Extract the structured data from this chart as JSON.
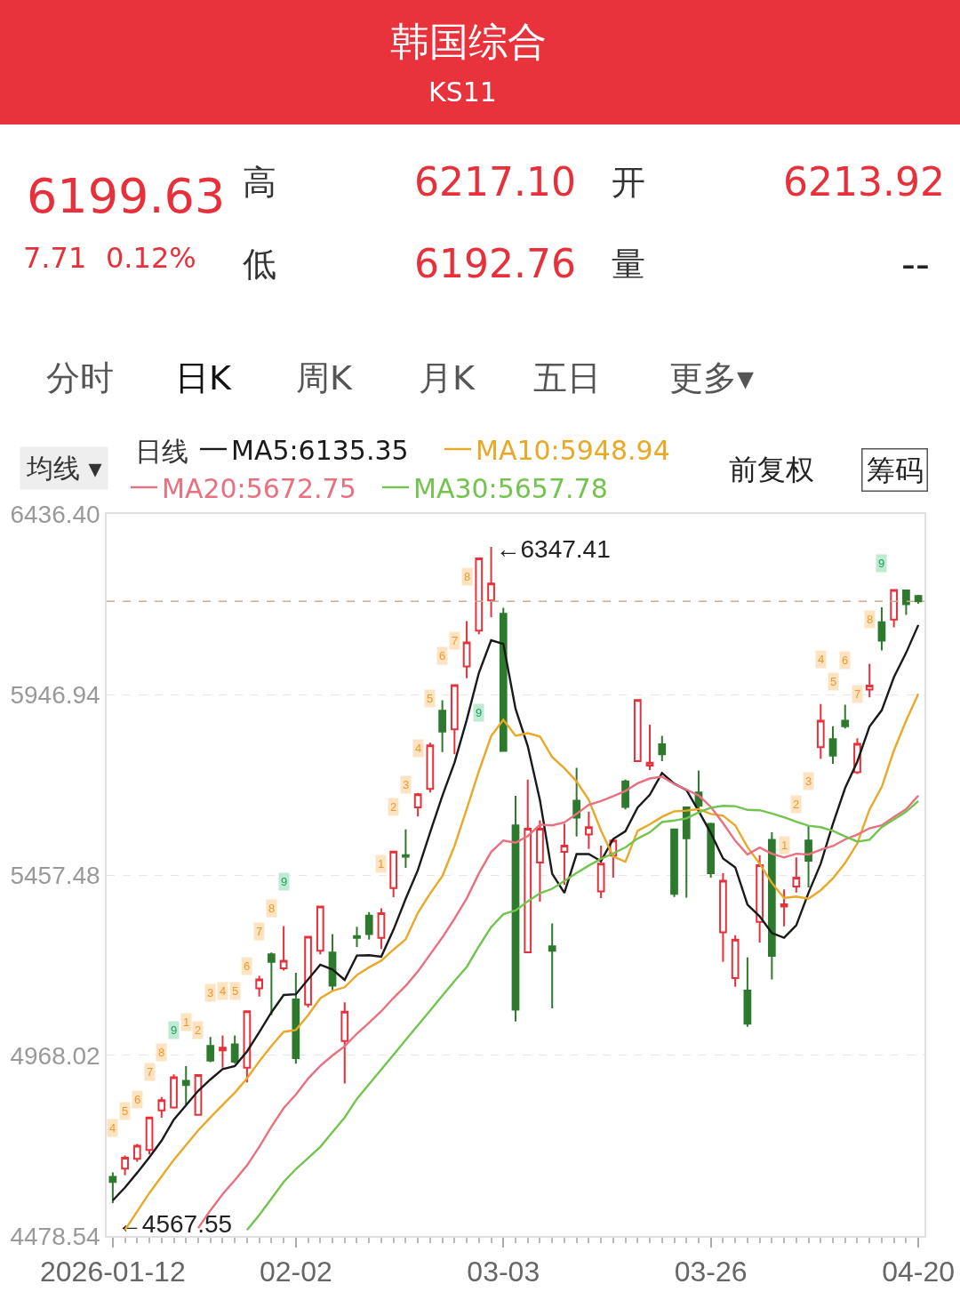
{
  "chart_data": {
    "type": "candlestick",
    "title": "韩国综合",
    "subtitle": "KS11",
    "legend_title": "日线",
    "legend": "top left",
    "grid": "y",
    "categories": [
      "2026-01-12",
      null,
      null,
      null,
      null,
      null,
      null,
      null,
      null,
      null,
      null,
      null,
      null,
      null,
      null,
      "02-02",
      null,
      null,
      null,
      null,
      null,
      null,
      null,
      null,
      null,
      null,
      null,
      null,
      null,
      null,
      null,
      null,
      "03-03",
      null,
      null,
      null,
      null,
      null,
      null,
      null,
      null,
      null,
      null,
      null,
      null,
      null,
      null,
      null,
      null,
      "03-26",
      null,
      null,
      null,
      null,
      null,
      null,
      null,
      null,
      null,
      null,
      null,
      null,
      null,
      null,
      null,
      null,
      "04-20"
    ],
    "ohlc": [
      [
        4639,
        4651,
        4567.55,
        4625
      ],
      [
        4661,
        4697,
        4643,
        4691
      ],
      [
        4688,
        4728,
        4680,
        4723
      ],
      [
        4712,
        4802,
        4700,
        4800
      ],
      [
        4819,
        4855,
        4799,
        4847
      ],
      [
        4827,
        4917,
        4824,
        4909
      ],
      [
        4899,
        4939,
        4835,
        4888
      ],
      [
        4807,
        4917,
        4805,
        4915
      ],
      [
        4994,
        5018,
        4950,
        4954
      ],
      [
        4982,
        5022,
        4935,
        4989
      ],
      [
        4998,
        5022,
        4946,
        4951
      ],
      [
        4935,
        5090,
        4895,
        5088
      ],
      [
        5150,
        5184,
        5128,
        5174
      ],
      [
        5242,
        5247,
        5078,
        5222
      ],
      [
        5204,
        5319,
        5198,
        5225
      ],
      [
        5120,
        5192,
        4946,
        4961
      ],
      [
        5106,
        5292,
        5098,
        5290
      ],
      [
        5252,
        5372,
        5242,
        5372
      ],
      [
        5247,
        5297,
        5142,
        5157
      ],
      [
        5007,
        5112,
        4892,
        5087
      ],
      [
        5292,
        5317,
        5262,
        5287
      ],
      [
        5347,
        5357,
        5282,
        5297
      ],
      [
        5287,
        5367,
        5257,
        5354
      ],
      [
        5422,
        5521,
        5397,
        5521
      ],
      [
        5511,
        5581,
        5477,
        5507
      ],
      [
        5641,
        5680,
        5616,
        5676
      ],
      [
        5691,
        5816,
        5681,
        5809
      ],
      [
        5903,
        5931,
        5791,
        5846
      ],
      [
        5852,
        5972,
        5785,
        5972
      ],
      [
        6023,
        6146,
        5991,
        6088
      ],
      [
        6120,
        6318,
        6110,
        6316
      ],
      [
        6202,
        6347.41,
        6156,
        6248
      ],
      [
        6166,
        6182,
        5794,
        5794
      ],
      [
        5592,
        5672,
        5060,
        5092
      ],
      [
        5248,
        5716,
        5248,
        5583
      ],
      [
        5491,
        5606,
        5385,
        5583
      ],
      [
        5264,
        5326,
        5096,
        5252
      ],
      [
        5520,
        5596,
        5431,
        5537
      ],
      [
        5659,
        5748,
        5562,
        5613
      ],
      [
        5567,
        5629,
        5528,
        5587
      ],
      [
        5413,
        5537,
        5395,
        5488
      ],
      [
        5510,
        5553,
        5450,
        5551
      ],
      [
        5711,
        5716,
        5635,
        5642
      ],
      [
        5766,
        5934,
        5764,
        5932
      ],
      [
        5754,
        5865,
        5742,
        5762
      ],
      [
        5812,
        5835,
        5766,
        5785
      ],
      [
        5581,
        5583,
        5398,
        5406
      ],
      [
        5641,
        5643,
        5396,
        5557
      ],
      [
        5681,
        5741,
        5637,
        5645
      ],
      [
        5596,
        5599,
        5450,
        5462
      ],
      [
        5302,
        5462,
        5222,
        5442
      ],
      [
        5178,
        5294,
        5154,
        5282
      ],
      [
        5144,
        5234,
        5046,
        5054
      ],
      [
        5330,
        5511,
        5274,
        5484
      ],
      [
        5553,
        5573,
        5174,
        5238
      ],
      [
        5372,
        5418,
        5318,
        5378
      ],
      [
        5426,
        5505,
        5410,
        5450
      ],
      [
        5551,
        5591,
        5424,
        5496
      ],
      [
        5804,
        5921,
        5772,
        5876
      ],
      [
        5826,
        5861,
        5759,
        5781
      ],
      [
        5876,
        5919,
        5855,
        5861
      ],
      [
        5736,
        5828,
        5731,
        5813
      ],
      [
        5960,
        6030,
        5939,
        5971
      ],
      [
        6143,
        6183,
        6066,
        6093
      ],
      [
        6150,
        6232,
        6129,
        6230
      ],
      [
        6229,
        6231,
        6163,
        6191.92
      ],
      [
        6213.92,
        6217.1,
        6192.76,
        6199.63
      ]
    ],
    "colors": [
      "#2d7a2e",
      "#e8303a",
      "#e8303a",
      "#e8303a",
      "#e8303a",
      "#e8303a",
      "#2d7a2e",
      "#e8303a",
      "#2d7a2e",
      "#e8303a",
      "#2d7a2e",
      "#e8303a",
      "#e8303a",
      "#2d7a2e",
      "#e8303a",
      "#2d7a2e",
      "#e8303a",
      "#e8303a",
      "#2d7a2e",
      "#e8303a",
      "#2d7a2e",
      "#2d7a2e",
      "#e8303a",
      "#e8303a",
      "#2d7a2e",
      "#e8303a",
      "#e8303a",
      "#2d7a2e",
      "#e8303a",
      "#e8303a",
      "#e8303a",
      "#e8303a",
      "#2d7a2e",
      "#2d7a2e",
      "#e8303a",
      "#e8303a",
      "#2d7a2e",
      "#e8303a",
      "#2d7a2e",
      "#e8303a",
      "#e8303a",
      "#e8303a",
      "#2d7a2e",
      "#e8303a",
      "#e8303a",
      "#2d7a2e",
      "#2d7a2e",
      "#2d7a2e",
      "#2d7a2e",
      "#2d7a2e",
      "#e8303a",
      "#e8303a",
      "#2d7a2e",
      "#e8303a",
      "#2d7a2e",
      "#e8303a",
      "#e8303a",
      "#2d7a2e",
      "#e8303a",
      "#2d7a2e",
      "#2d7a2e",
      "#e8303a",
      "#e8303a",
      "#2d7a2e",
      "#e8303a",
      "#2d7a2e",
      "#2d7a2e"
    ],
    "ylim": [
      4478.54,
      6436.4
    ],
    "yticks": [
      4478.54,
      4968.02,
      5457.48,
      5946.94,
      {
        "value": 6436.4,
        "label": "6436.40"
      }
    ],
    "series": [
      {
        "name": "MA5:6135.35",
        "type": "line",
        "color": "#1a1a1a",
        "values": [
          4575,
          4610,
          4650,
          4692,
          4737,
          4794,
          4833,
          4872,
          4903,
          4931,
          4939,
          4979,
          5031,
          5085,
          5132,
          5134,
          5174,
          5214,
          5201,
          5173,
          5239,
          5240,
          5236,
          5309,
          5393,
          5471,
          5573,
          5672,
          5762,
          5878,
          6006,
          6094,
          6084,
          5908,
          5807,
          5660,
          5461,
          5409,
          5514,
          5514,
          5495,
          5555,
          5576,
          5640,
          5675,
          5734,
          5705,
          5688,
          5631,
          5571,
          5502,
          5478,
          5377,
          5345,
          5300,
          5287,
          5321,
          5409,
          5488,
          5596,
          5693,
          5765,
          5860,
          5904,
          5994,
          6060,
          6135.35
        ]
      },
      {
        "name": "MA10:5948.94",
        "type": "line",
        "color": "#e9a825",
        "values": [
          null,
          4495,
          4545,
          4595,
          4640,
          4685,
          4725,
          4765,
          4800,
          4834,
          4867,
          4906,
          4952,
          4994,
          5032,
          5037,
          5077,
          5123,
          5143,
          5153,
          5186,
          5207,
          5225,
          5255,
          5283,
          5355,
          5407,
          5454,
          5536,
          5636,
          5739,
          5834,
          5878,
          5835,
          5842,
          5833,
          5777,
          5747,
          5711,
          5661,
          5578,
          5508,
          5493,
          5577,
          5595,
          5615,
          5630,
          5632,
          5636,
          5623,
          5618,
          5592,
          5533,
          5488,
          5436,
          5395,
          5399,
          5393,
          5416,
          5448,
          5490,
          5543,
          5635,
          5696,
          5795,
          5876,
          5948.94
        ]
      },
      {
        "name": "MA20:5672.75",
        "type": "line",
        "color": "#ea6f7f",
        "values": [
          null,
          null,
          null,
          null,
          null,
          null,
          null,
          4500,
          4548,
          4592,
          4630,
          4670,
          4720,
          4775,
          4825,
          4862,
          4905,
          4940,
          4968,
          4993,
          5027,
          5057,
          5088,
          5124,
          5157,
          5196,
          5242,
          5288,
          5339,
          5394,
          5462,
          5520,
          5551,
          5545,
          5563,
          5594,
          5592,
          5600,
          5623,
          5648,
          5658,
          5671,
          5685,
          5706,
          5719,
          5724,
          5704,
          5689,
          5673,
          5642,
          5598,
          5550,
          5513,
          5532,
          5515,
          5505,
          5515,
          5513,
          5526,
          5536,
          5554,
          5567,
          5584,
          5592,
          5615,
          5636,
          5672.75
        ]
      },
      {
        "name": "MA30:5657.78",
        "type": "line",
        "color": "#72c44f",
        "values": [
          null,
          null,
          null,
          null,
          null,
          null,
          null,
          null,
          null,
          null,
          null,
          4495,
          4535,
          4580,
          4625,
          4660,
          4690,
          4720,
          4760,
          4800,
          4850,
          4890,
          4930,
          4970,
          5010,
          5050,
          5090,
          5130,
          5170,
          5208,
          5264,
          5316,
          5351,
          5361,
          5386,
          5408,
          5420,
          5441,
          5463,
          5483,
          5501,
          5516,
          5532,
          5556,
          5573,
          5601,
          5605,
          5611,
          5627,
          5640,
          5645,
          5644,
          5634,
          5633,
          5624,
          5614,
          5602,
          5591,
          5587,
          5577,
          5562,
          5548,
          5553,
          5587,
          5608,
          5629,
          5657.78
        ]
      }
    ],
    "ref_lines": [
      {
        "axis": "y",
        "value": 6199.63,
        "color": "#c9ad8e",
        "line_style": "dashed"
      }
    ],
    "annotations": [
      "6199.63",
      "7.71",
      "0.12%",
      "高",
      "6217.10",
      "开",
      "6213.92",
      "低",
      "6192.76",
      "量",
      "--",
      "分时",
      "日K",
      "周K",
      "月K",
      "五日",
      "更多▾",
      "均线 ▾",
      "前复权",
      "筹码",
      "←6347.41",
      "←4567.55",
      "4",
      "5",
      "6",
      "7",
      "8",
      "9",
      "1",
      "2",
      "3",
      "4",
      "5",
      "6",
      "7",
      "8",
      "9",
      "1",
      "2",
      "3",
      "4",
      "5",
      "6",
      "7",
      "8",
      "9",
      "1",
      "2",
      "3",
      "4",
      "5",
      "6",
      "7",
      "8",
      "9"
    ]
  }
}
